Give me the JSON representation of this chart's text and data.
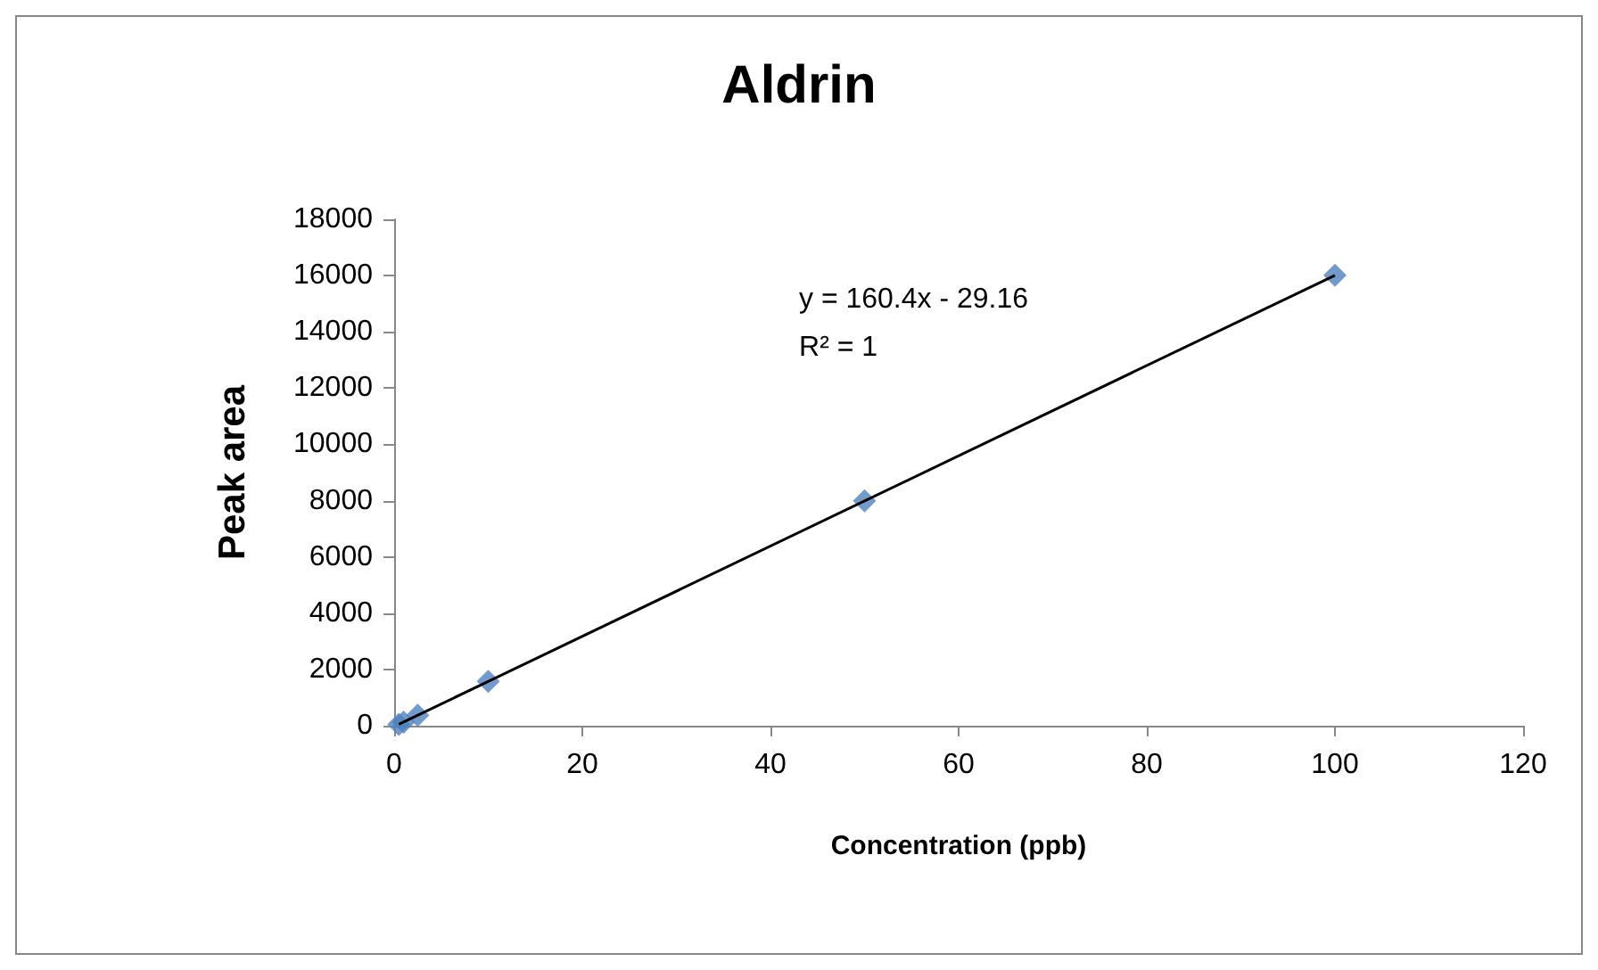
{
  "chart_data": {
    "type": "scatter",
    "title": "Aldrin",
    "xlabel": "Concentration (ppb)",
    "ylabel": "Peak area",
    "series": [
      {
        "type": "scatter",
        "color": "#4f81bd",
        "marker": "diamond",
        "x": [
          0.5,
          1,
          2.5,
          10,
          50,
          100
        ],
        "values": [
          50,
          130,
          370,
          1580,
          7990,
          16010
        ]
      },
      {
        "type": "line",
        "color": "#000000",
        "marker": "none",
        "x": [
          0.5,
          100
        ],
        "values": [
          50,
          16010
        ]
      }
    ],
    "annotations": [
      "y = 160.4x - 29.16",
      "R² = 1"
    ],
    "xlim": [
      0,
      120
    ],
    "xticks": [
      0,
      20,
      40,
      60,
      80,
      100,
      120
    ],
    "ylim": [
      0,
      18000
    ],
    "yticks": [
      0,
      2000,
      4000,
      6000,
      8000,
      10000,
      12000,
      14000,
      16000,
      18000
    ],
    "grid": false
  }
}
